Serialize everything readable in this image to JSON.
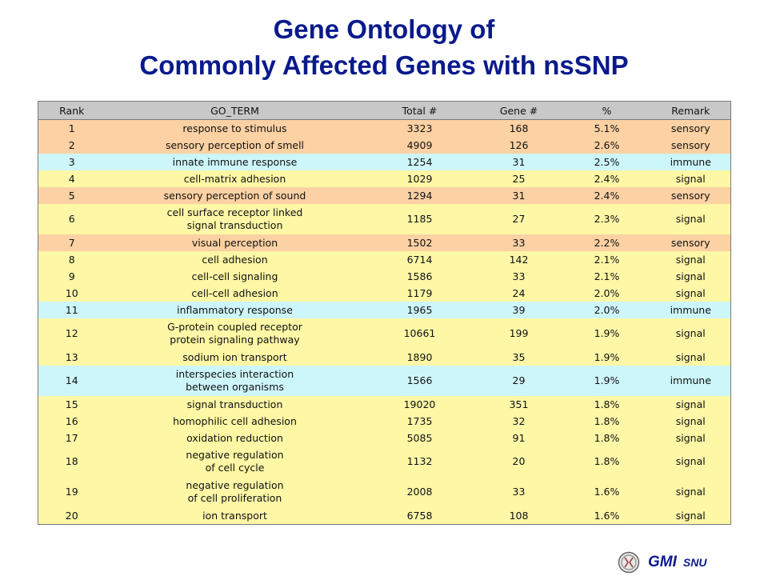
{
  "title": {
    "line1": "Gene Ontology of",
    "line2": "Commonly Affected Genes with nsSNP"
  },
  "table": {
    "headers": [
      "Rank",
      "GO_TERM",
      "Total #",
      "Gene #",
      "%",
      "Remark"
    ],
    "rows": [
      {
        "rank": "1",
        "term": [
          "response to stimulus"
        ],
        "total": "3323",
        "gene": "168",
        "pct": "5.1%",
        "remark": "sensory"
      },
      {
        "rank": "2",
        "term": [
          "sensory perception of smell"
        ],
        "total": "4909",
        "gene": "126",
        "pct": "2.6%",
        "remark": "sensory"
      },
      {
        "rank": "3",
        "term": [
          "innate immune response"
        ],
        "total": "1254",
        "gene": "31",
        "pct": "2.5%",
        "remark": "immune"
      },
      {
        "rank": "4",
        "term": [
          "cell-matrix adhesion"
        ],
        "total": "1029",
        "gene": "25",
        "pct": "2.4%",
        "remark": "signal"
      },
      {
        "rank": "5",
        "term": [
          "sensory perception of sound"
        ],
        "total": "1294",
        "gene": "31",
        "pct": "2.4%",
        "remark": "sensory"
      },
      {
        "rank": "6",
        "term": [
          "cell surface receptor linked",
          "signal transduction"
        ],
        "total": "1185",
        "gene": "27",
        "pct": "2.3%",
        "remark": "signal"
      },
      {
        "rank": "7",
        "term": [
          "visual perception"
        ],
        "total": "1502",
        "gene": "33",
        "pct": "2.2%",
        "remark": "sensory"
      },
      {
        "rank": "8",
        "term": [
          "cell adhesion"
        ],
        "total": "6714",
        "gene": "142",
        "pct": "2.1%",
        "remark": "signal"
      },
      {
        "rank": "9",
        "term": [
          "cell-cell signaling"
        ],
        "total": "1586",
        "gene": "33",
        "pct": "2.1%",
        "remark": "signal"
      },
      {
        "rank": "10",
        "term": [
          "cell-cell adhesion"
        ],
        "total": "1179",
        "gene": "24",
        "pct": "2.0%",
        "remark": "signal"
      },
      {
        "rank": "11",
        "term": [
          "inflammatory response"
        ],
        "total": "1965",
        "gene": "39",
        "pct": "2.0%",
        "remark": "immune"
      },
      {
        "rank": "12",
        "term": [
          "G-protein coupled receptor",
          "protein signaling pathway"
        ],
        "total": "10661",
        "gene": "199",
        "pct": "1.9%",
        "remark": "signal"
      },
      {
        "rank": "13",
        "term": [
          "sodium ion transport"
        ],
        "total": "1890",
        "gene": "35",
        "pct": "1.9%",
        "remark": "signal"
      },
      {
        "rank": "14",
        "term": [
          "interspecies interaction",
          "between organisms"
        ],
        "total": "1566",
        "gene": "29",
        "pct": "1.9%",
        "remark": "immune"
      },
      {
        "rank": "15",
        "term": [
          "signal transduction"
        ],
        "total": "19020",
        "gene": "351",
        "pct": "1.8%",
        "remark": "signal"
      },
      {
        "rank": "16",
        "term": [
          "homophilic cell adhesion"
        ],
        "total": "1735",
        "gene": "32",
        "pct": "1.8%",
        "remark": "signal"
      },
      {
        "rank": "17",
        "term": [
          "oxidation reduction"
        ],
        "total": "5085",
        "gene": "91",
        "pct": "1.8%",
        "remark": "signal"
      },
      {
        "rank": "18",
        "term": [
          "negative regulation",
          "of cell cycle"
        ],
        "total": "1132",
        "gene": "20",
        "pct": "1.8%",
        "remark": "signal"
      },
      {
        "rank": "19",
        "term": [
          "negative regulation",
          "of cell proliferation"
        ],
        "total": "2008",
        "gene": "33",
        "pct": "1.6%",
        "remark": "signal"
      },
      {
        "rank": "20",
        "term": [
          "ion transport"
        ],
        "total": "6758",
        "gene": "108",
        "pct": "1.6%",
        "remark": "signal"
      }
    ]
  },
  "row_colors": {
    "sensory": "#fcd1a3",
    "immune": "#cdf6fb",
    "signal": "#fdf7a6"
  },
  "logo": {
    "icon": "gmi-logo-icon",
    "text_main": "GMI",
    "text_sub": "SNU"
  }
}
